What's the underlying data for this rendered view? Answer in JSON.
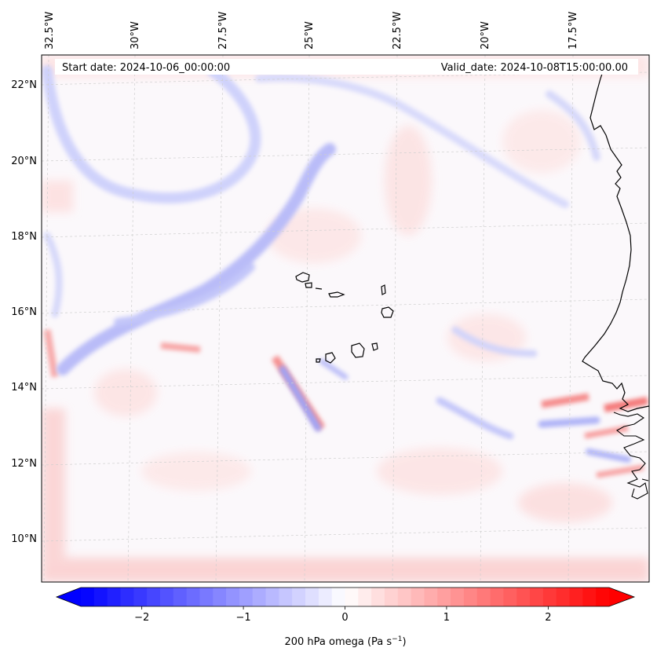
{
  "header": {
    "start_date": "Start date: 2024-10-06_00:00:00",
    "valid_date": "Valid_date: 2024-10-08T15:00:00.00"
  },
  "map": {
    "field": "200 hPa omega",
    "lon_labels": [
      "32.5°W",
      "30°W",
      "27.5°W",
      "25°W",
      "22.5°W",
      "20°W",
      "17.5°W"
    ],
    "lat_labels": [
      "22°N",
      "20°N",
      "18°N",
      "16°N",
      "14°N",
      "12°N",
      "10°N"
    ],
    "gridlines": "dashed grey",
    "coastline_color": "#000000"
  },
  "colorbar": {
    "label": "200 hPa omega (Pa s",
    "label_superscript": "−1",
    "label_close": ")",
    "ticks": [
      "−2",
      "−1",
      "0",
      "1",
      "2"
    ],
    "range": [
      -2.6,
      2.6
    ],
    "colormap": "bwr",
    "extend": "both",
    "colors": {
      "negative": "#0000ff",
      "zero": "#ffffff",
      "positive": "#ff0000"
    }
  }
}
